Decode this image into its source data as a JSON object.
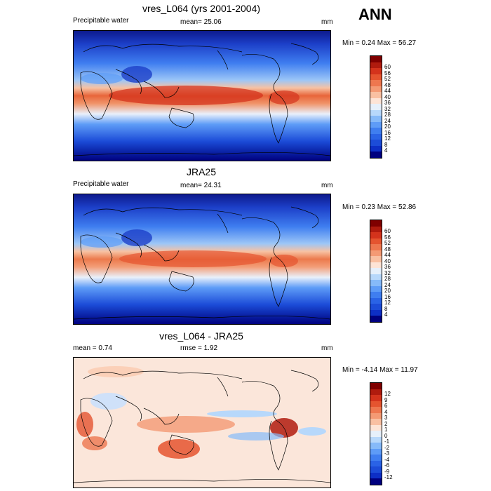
{
  "season": "ANN",
  "panels": [
    {
      "title": "vres_L064 (yrs 2001-2004)",
      "left_label": "Precipitable water",
      "center_label": "mean=  25.06",
      "units": "mm",
      "minmax": "Min =   0.24 Max =  56.27",
      "colorbar": {
        "colors": [
          "#00007f",
          "#0d2fc6",
          "#1c4cd8",
          "#2a63e6",
          "#3f7ef0",
          "#5e9cf7",
          "#86baf9",
          "#b7d8fb",
          "#e6f0fb",
          "#fde4d6",
          "#f9c0a2",
          "#f49a74",
          "#ee774f",
          "#e5542f",
          "#d4331c",
          "#b01b0e",
          "#7f0000"
        ],
        "labels": [
          "4",
          "8",
          "12",
          "16",
          "20",
          "24",
          "28",
          "32",
          "36",
          "40",
          "44",
          "48",
          "52",
          "56",
          "60"
        ]
      }
    },
    {
      "title": "JRA25",
      "left_label": "Precipitable water",
      "center_label": "mean=  24.31",
      "units": "mm",
      "minmax": "Min =   0.23 Max =  52.86",
      "colorbar": {
        "colors": [
          "#00007f",
          "#0d2fc6",
          "#1c4cd8",
          "#2a63e6",
          "#3f7ef0",
          "#5e9cf7",
          "#86baf9",
          "#b7d8fb",
          "#e6f0fb",
          "#fde4d6",
          "#f9c0a2",
          "#f49a74",
          "#ee774f",
          "#e5542f",
          "#d4331c",
          "#b01b0e",
          "#7f0000"
        ],
        "labels": [
          "4",
          "8",
          "12",
          "16",
          "20",
          "24",
          "28",
          "32",
          "36",
          "40",
          "44",
          "48",
          "52",
          "56",
          "60"
        ]
      }
    },
    {
      "title": "vres_L064 - JRA25",
      "left_label": "mean =   0.74",
      "center_label": "rmse =   1.92",
      "units": "mm",
      "minmax": "Min =  -4.14 Max =  11.97",
      "colorbar": {
        "colors": [
          "#00007f",
          "#0d2fc6",
          "#1c4cd8",
          "#2a63e6",
          "#3f7ef0",
          "#5e9cf7",
          "#86baf9",
          "#b7d8fb",
          "#e6f0fb",
          "#fde4d6",
          "#f9c0a2",
          "#f49a74",
          "#ee774f",
          "#e5542f",
          "#d4331c",
          "#b01b0e",
          "#7f0000"
        ],
        "labels": [
          "-12",
          "-9",
          "-6",
          "-4",
          "-3",
          "-2",
          "-1",
          "0",
          "1",
          "2",
          "3",
          "4",
          "6",
          "9",
          "12"
        ]
      }
    }
  ],
  "colors": {
    "deep_blue": "#0a1a9a",
    "mid_blue": "#2a63e6",
    "light_blue": "#8ab8f5",
    "pale": "#fbe6da",
    "orange": "#f08a5c",
    "red": "#e0502c",
    "dark_red": "#b01b0e"
  }
}
